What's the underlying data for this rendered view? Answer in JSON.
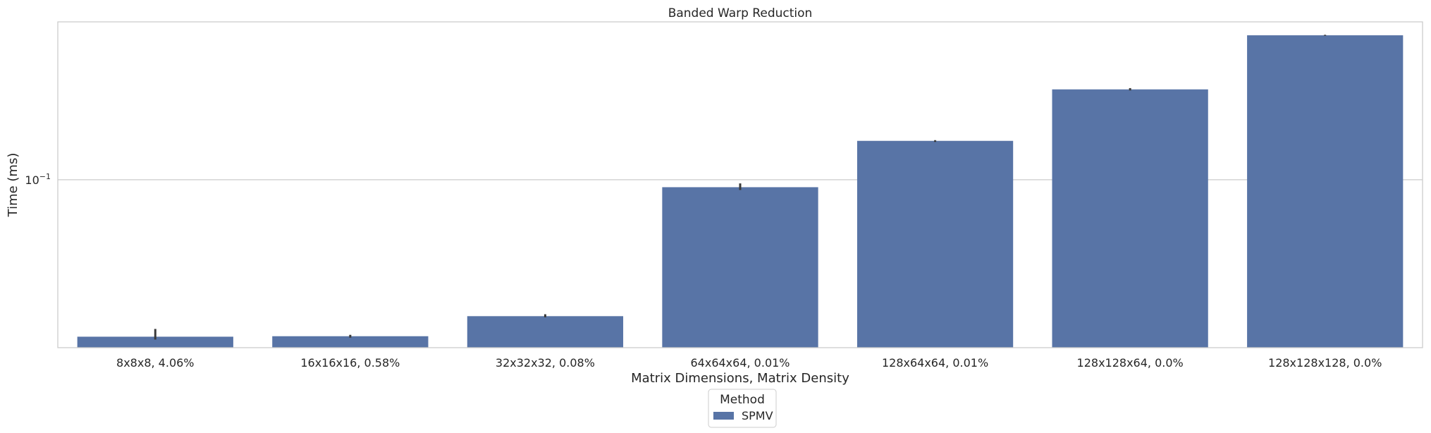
{
  "chart_data": {
    "type": "bar",
    "title": "Banded Warp Reduction",
    "xlabel": "Matrix Dimensions, Matrix Density",
    "ylabel": "Time (ms)",
    "yscale": "log",
    "ylim": [
      0.0195,
      0.465
    ],
    "yticks": [
      {
        "value": 0.1,
        "base": "10",
        "exp": "−1"
      }
    ],
    "grid": "horizontal",
    "categories": [
      "8x8x8, 4.06%",
      "16x16x16, 0.58%",
      "32x32x32, 0.08%",
      "64x64x64, 0.01%",
      "128x64x64, 0.01%",
      "128x128x64, 0.0%",
      "128x128x128, 0.0%"
    ],
    "series": [
      {
        "name": "SPMV",
        "color": "#5874a6",
        "values": [
          0.0217,
          0.0218,
          0.0265,
          0.093,
          0.146,
          0.241,
          0.408
        ],
        "error": [
          [
            0.0211,
            0.0234
          ],
          [
            0.0215,
            0.0221
          ],
          [
            0.0262,
            0.027
          ],
          [
            0.0905,
            0.0965
          ],
          [
            0.1445,
            0.147
          ],
          [
            0.2385,
            0.244
          ],
          [
            0.406,
            0.41
          ]
        ]
      }
    ],
    "legend": {
      "title": "Method",
      "placement": "bottom-center"
    }
  }
}
